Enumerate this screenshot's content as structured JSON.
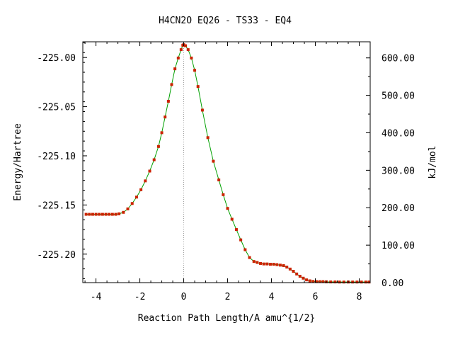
{
  "chart_data": {
    "type": "line",
    "title": "H4CN2O   EQ26 - TS33 - EQ4",
    "xlabel": "Reaction Path Length/A amu^{1/2}",
    "ylabel": "Energy/Hartree",
    "y2label": "kJ/mol",
    "xlim": [
      -4.6,
      8.5
    ],
    "ylim": [
      -225.229,
      -224.984
    ],
    "y2lim": [
      0,
      643
    ],
    "x_ticks": [
      -4,
      -2,
      0,
      2,
      4,
      6,
      8
    ],
    "x_tick_labels": [
      "-4",
      "-2",
      "0",
      "2",
      "4",
      "6",
      "8"
    ],
    "y_ticks": [
      -225.2,
      -225.15,
      -225.1,
      -225.05,
      -225.0
    ],
    "y_tick_labels": [
      "-225.20",
      "-225.15",
      "-225.10",
      "-225.05",
      "-225.00"
    ],
    "y2_ticks": [
      0,
      100,
      200,
      300,
      400,
      500,
      600
    ],
    "y2_tick_labels": [
      "0.00",
      "100.00",
      "200.00",
      "300.00",
      "400.00",
      "500.00",
      "600.00"
    ],
    "ts_marker_x": 0,
    "grid": false,
    "line_color": "#00a000",
    "marker_color": "#cc2200",
    "series": [
      {
        "x": [
          -4.45,
          -4.3,
          -4.15,
          -4.0,
          -3.85,
          -3.7,
          -3.55,
          -3.4,
          -3.25,
          -3.1,
          -2.95,
          -2.75,
          -2.55,
          -2.35,
          -2.15,
          -1.95,
          -1.75,
          -1.55,
          -1.35,
          -1.15,
          -1.0,
          -0.85,
          -0.7,
          -0.55,
          -0.4,
          -0.25,
          -0.12,
          -0.04,
          0.0,
          0.08,
          0.2,
          0.35,
          0.5,
          0.65,
          0.85,
          1.1,
          1.35,
          1.6,
          1.8,
          2.0,
          2.2,
          2.4,
          2.6,
          2.8,
          3.0,
          3.2,
          3.35,
          3.5,
          3.65,
          3.8,
          3.95,
          4.1,
          4.25,
          4.4,
          4.55,
          4.7,
          4.85,
          5.0,
          5.15,
          5.3,
          5.45,
          5.6,
          5.75,
          5.9,
          6.05,
          6.2,
          6.35,
          6.5,
          6.7,
          6.9,
          7.1,
          7.3,
          7.5,
          7.7,
          7.9,
          8.1,
          8.3,
          8.45
        ],
        "y": [
          -225.1595,
          -225.1595,
          -225.1595,
          -225.1595,
          -225.1595,
          -225.1595,
          -225.1595,
          -225.1595,
          -225.1595,
          -225.1595,
          -225.159,
          -225.1575,
          -225.154,
          -225.1485,
          -225.142,
          -225.1345,
          -225.1255,
          -225.1155,
          -225.104,
          -225.0905,
          -225.0765,
          -225.0605,
          -225.0445,
          -225.0275,
          -225.0115,
          -225.0005,
          -224.992,
          -224.9875,
          -224.987,
          -224.988,
          -224.992,
          -225.0005,
          -225.013,
          -225.0295,
          -225.0535,
          -225.0815,
          -225.1055,
          -225.1245,
          -225.1395,
          -225.1535,
          -225.1645,
          -225.175,
          -225.1855,
          -225.1955,
          -225.2035,
          -225.2075,
          -225.2085,
          -225.2095,
          -225.21,
          -225.21,
          -225.2103,
          -225.2103,
          -225.2107,
          -225.2112,
          -225.2117,
          -225.2132,
          -225.2152,
          -225.2175,
          -225.2202,
          -225.2225,
          -225.2245,
          -225.2262,
          -225.2272,
          -225.2278,
          -225.228,
          -225.228,
          -225.228,
          -225.2282,
          -225.2283,
          -225.2283,
          -225.2284,
          -225.2284,
          -225.2284,
          -225.2284,
          -225.2284,
          -225.2284,
          -225.2284,
          -225.2284
        ]
      }
    ]
  }
}
